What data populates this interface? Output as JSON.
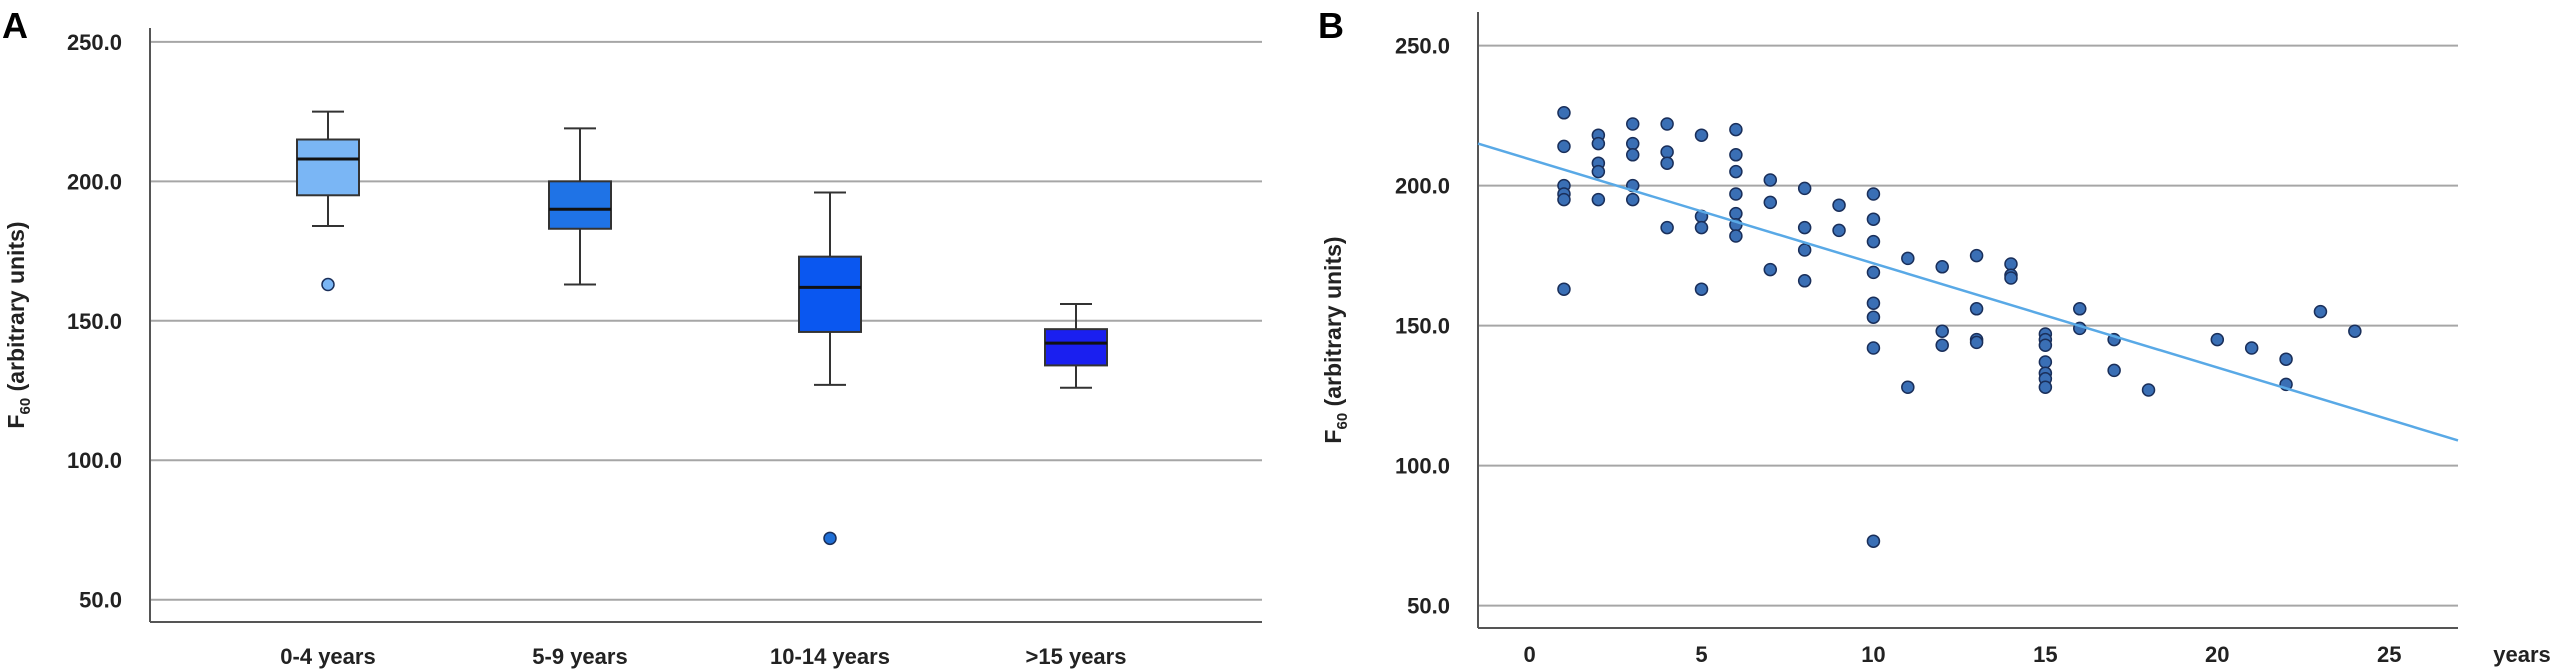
{
  "chart_data": [
    {
      "panel": "A",
      "type": "box",
      "ylabel_main": "F",
      "ylabel_sub": "60",
      "ylabel_rest": " (arbitrary units)",
      "ylim": [
        42,
        260
      ],
      "yticks": [
        50,
        100,
        150,
        200,
        250
      ],
      "ytick_labels": [
        "50.0",
        "100.0",
        "150.0",
        "200.0",
        "250.0"
      ],
      "categories": [
        "0-4 years",
        "5-9 years",
        "10-14 years",
        ">15 years"
      ],
      "boxes": [
        {
          "label": "0-4 years",
          "min": 184,
          "q1": 195,
          "median": 208,
          "q3": 215,
          "max": 225,
          "outliers": [
            163
          ],
          "color": "#7ab6f5",
          "outlier_color": "#7ab6f5"
        },
        {
          "label": "5-9 years",
          "min": 163,
          "q1": 183,
          "median": 190,
          "q3": 200,
          "max": 219,
          "outliers": [],
          "color": "#1f73e6",
          "outlier_color": "#1f73e6"
        },
        {
          "label": "10-14 years",
          "min": 127,
          "q1": 146,
          "median": 162,
          "q3": 173,
          "max": 196,
          "outliers": [
            72
          ],
          "color": "#0a57f0",
          "outlier_color": "#1f6fd6"
        },
        {
          "label": ">15 years",
          "min": 126,
          "q1": 134,
          "median": 142,
          "q3": 147,
          "max": 156,
          "outliers": [],
          "color": "#1a1ff0",
          "outlier_color": "#1a1ff0"
        }
      ]
    },
    {
      "panel": "B",
      "type": "scatter",
      "ylabel_main": "F",
      "ylabel_sub": "60",
      "ylabel_rest": " (arbitrary units)",
      "xlabel": "years",
      "xlim": [
        -1.5,
        27
      ],
      "ylim": [
        42,
        262
      ],
      "xticks": [
        0,
        5,
        10,
        15,
        20,
        25
      ],
      "xtick_labels": [
        "0",
        "5",
        "10",
        "15",
        "20",
        "25"
      ],
      "yticks": [
        50,
        100,
        150,
        200,
        250
      ],
      "ytick_labels": [
        "50.0",
        "100.0",
        "150.0",
        "200.0",
        "250.0"
      ],
      "fit_line": {
        "x": [
          -1.5,
          27
        ],
        "y": [
          215,
          109
        ]
      },
      "points": [
        [
          1,
          226
        ],
        [
          1,
          214
        ],
        [
          1,
          200
        ],
        [
          1,
          197
        ],
        [
          1,
          195
        ],
        [
          1,
          163
        ],
        [
          2,
          218
        ],
        [
          2,
          215
        ],
        [
          2,
          208
        ],
        [
          2,
          205
        ],
        [
          2,
          195
        ],
        [
          3,
          222
        ],
        [
          3,
          215
        ],
        [
          3,
          211
        ],
        [
          3,
          200
        ],
        [
          3,
          195
        ],
        [
          4,
          222
        ],
        [
          4,
          212
        ],
        [
          4,
          208
        ],
        [
          4,
          185
        ],
        [
          5,
          218
        ],
        [
          5,
          189
        ],
        [
          5,
          185
        ],
        [
          5,
          163
        ],
        [
          6,
          220
        ],
        [
          6,
          211
        ],
        [
          6,
          205
        ],
        [
          6,
          197
        ],
        [
          6,
          190
        ],
        [
          6,
          186
        ],
        [
          6,
          182
        ],
        [
          7,
          202
        ],
        [
          7,
          194
        ],
        [
          7,
          170
        ],
        [
          8,
          199
        ],
        [
          8,
          185
        ],
        [
          8,
          177
        ],
        [
          8,
          166
        ],
        [
          9,
          193
        ],
        [
          9,
          184
        ],
        [
          10,
          197
        ],
        [
          10,
          188
        ],
        [
          10,
          180
        ],
        [
          10,
          169
        ],
        [
          10,
          158
        ],
        [
          10,
          153
        ],
        [
          10,
          142
        ],
        [
          10,
          73
        ],
        [
          11,
          174
        ],
        [
          11,
          128
        ],
        [
          12,
          171
        ],
        [
          12,
          148
        ],
        [
          12,
          143
        ],
        [
          13,
          175
        ],
        [
          13,
          156
        ],
        [
          13,
          145
        ],
        [
          13,
          144
        ],
        [
          14,
          172
        ],
        [
          14,
          168
        ],
        [
          14,
          167
        ],
        [
          15,
          147
        ],
        [
          15,
          145
        ],
        [
          15,
          143
        ],
        [
          15,
          137
        ],
        [
          15,
          133
        ],
        [
          15,
          131
        ],
        [
          15,
          128
        ],
        [
          16,
          156
        ],
        [
          16,
          149
        ],
        [
          17,
          145
        ],
        [
          17,
          134
        ],
        [
          18,
          127
        ],
        [
          20,
          145
        ],
        [
          21,
          142
        ],
        [
          22,
          138
        ],
        [
          22,
          129
        ],
        [
          23,
          155
        ],
        [
          24,
          148
        ]
      ]
    }
  ],
  "labels": {
    "panel_a": "A",
    "panel_b": "B"
  }
}
